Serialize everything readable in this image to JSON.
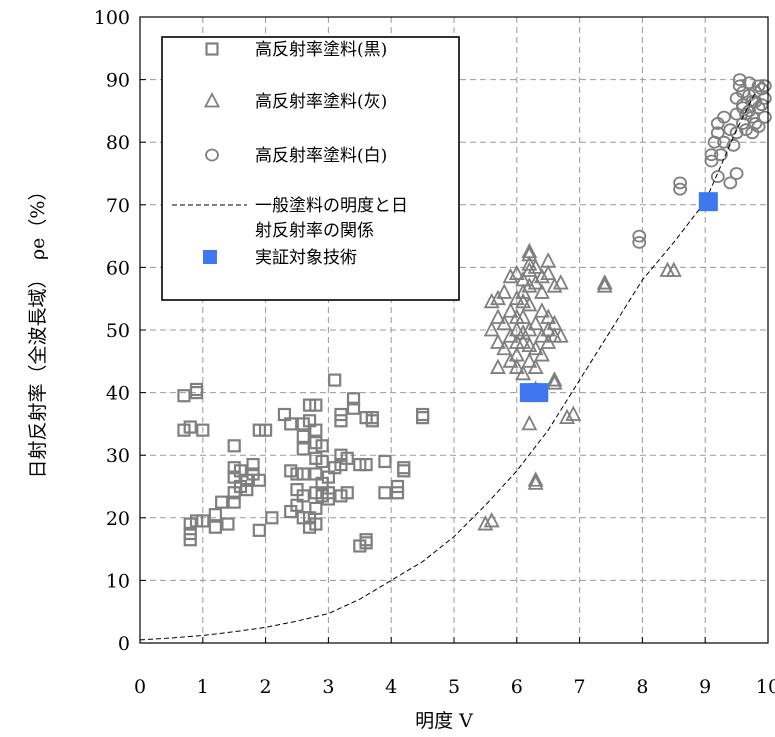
{
  "chart_data": {
    "type": "scatter",
    "xlabel": "明度 V",
    "ylabel": "日射反射率（全波長域）　ρe（%）",
    "xlim": [
      0,
      10
    ],
    "ylim": [
      0,
      100
    ],
    "x_ticks": [
      "0",
      "1",
      "2",
      "3",
      "4",
      "5",
      "6",
      "7",
      "8",
      "9",
      "10"
    ],
    "y_ticks": [
      "0",
      "10",
      "20",
      "30",
      "40",
      "50",
      "60",
      "70",
      "80",
      "90",
      "100"
    ],
    "grid": true,
    "legend_position": "top-left",
    "legend": [
      {
        "marker": "square",
        "label": "高反射率塗料(黒)"
      },
      {
        "marker": "triangle",
        "label": "高反射率塗料(灰)"
      },
      {
        "marker": "circle",
        "label": "高反射率塗料(白)"
      },
      {
        "marker": "dashed-line",
        "label": "一般塗料の明度と日\n射反射率の関係"
      },
      {
        "marker": "filled-square",
        "label": "実証対象技術"
      }
    ],
    "colors": {
      "markers": "#7f7f7f",
      "highlight": "#3f77f0",
      "line": "#000000"
    },
    "series": [
      {
        "name": "高反射率塗料(黒)",
        "marker": "square",
        "points": [
          [
            0.7,
            34
          ],
          [
            0.8,
            34.5
          ],
          [
            0.9,
            40
          ],
          [
            0.9,
            40.5
          ],
          [
            1.0,
            34
          ],
          [
            0.7,
            39.5
          ],
          [
            0.8,
            16.5
          ],
          [
            0.8,
            17.5
          ],
          [
            0.8,
            19
          ],
          [
            0.9,
            19.5
          ],
          [
            1.0,
            19.5
          ],
          [
            1.2,
            18.5
          ],
          [
            1.2,
            20.5
          ],
          [
            1.3,
            22.5
          ],
          [
            1.4,
            19
          ],
          [
            1.5,
            22.5
          ],
          [
            1.5,
            24
          ],
          [
            1.5,
            26.5
          ],
          [
            1.5,
            28
          ],
          [
            1.5,
            31.5
          ],
          [
            1.6,
            25
          ],
          [
            1.6,
            27.5
          ],
          [
            1.7,
            24.5
          ],
          [
            1.7,
            26
          ],
          [
            1.8,
            27
          ],
          [
            1.8,
            28.5
          ],
          [
            1.9,
            26
          ],
          [
            1.9,
            34
          ],
          [
            2.0,
            34
          ],
          [
            1.9,
            18
          ],
          [
            2.1,
            20
          ],
          [
            2.3,
            36.5
          ],
          [
            2.4,
            35
          ],
          [
            2.4,
            27.5
          ],
          [
            2.5,
            27
          ],
          [
            2.5,
            24.5
          ],
          [
            2.4,
            21
          ],
          [
            2.5,
            22
          ],
          [
            2.6,
            20
          ],
          [
            2.6,
            23.5
          ],
          [
            2.6,
            27
          ],
          [
            2.6,
            31
          ],
          [
            2.6,
            33
          ],
          [
            2.6,
            35
          ],
          [
            2.7,
            38
          ],
          [
            2.7,
            35.5
          ],
          [
            2.7,
            18.5
          ],
          [
            2.7,
            20
          ],
          [
            2.8,
            19
          ],
          [
            2.8,
            21.5
          ],
          [
            2.8,
            24
          ],
          [
            2.8,
            27
          ],
          [
            2.8,
            29.5
          ],
          [
            2.8,
            32
          ],
          [
            2.8,
            34
          ],
          [
            2.8,
            38
          ],
          [
            2.9,
            23.5
          ],
          [
            2.9,
            25.5
          ],
          [
            2.9,
            29
          ],
          [
            2.9,
            31.5
          ],
          [
            3.0,
            24
          ],
          [
            3.0,
            26.5
          ],
          [
            3.0,
            23
          ],
          [
            3.1,
            42
          ],
          [
            3.1,
            28
          ],
          [
            3.2,
            23.5
          ],
          [
            3.2,
            28.5
          ],
          [
            3.2,
            30
          ],
          [
            3.2,
            35.5
          ],
          [
            3.2,
            36.5
          ],
          [
            3.3,
            24
          ],
          [
            3.3,
            29.5
          ],
          [
            3.4,
            37.5
          ],
          [
            3.4,
            39
          ],
          [
            3.5,
            15.5
          ],
          [
            3.6,
            16
          ],
          [
            3.6,
            16.5
          ],
          [
            3.5,
            28.5
          ],
          [
            3.6,
            28.5
          ],
          [
            3.6,
            36
          ],
          [
            3.7,
            35.5
          ],
          [
            3.7,
            36
          ],
          [
            3.9,
            24
          ],
          [
            3.9,
            29
          ],
          [
            4.1,
            24
          ],
          [
            4.1,
            25
          ],
          [
            4.2,
            27.5
          ],
          [
            4.2,
            28
          ],
          [
            4.5,
            36
          ],
          [
            4.5,
            36.5
          ]
        ]
      },
      {
        "name": "高反射率塗料(灰)",
        "marker": "triangle",
        "points": [
          [
            5.5,
            19
          ],
          [
            5.6,
            19.5
          ],
          [
            6.2,
            35
          ],
          [
            6.3,
            25.5
          ],
          [
            6.3,
            26
          ],
          [
            6.8,
            36
          ],
          [
            6.9,
            36.5
          ],
          [
            7.4,
            57.5
          ],
          [
            7.4,
            57
          ],
          [
            8.4,
            59.5
          ],
          [
            8.5,
            59.5
          ],
          [
            6.0,
            44
          ],
          [
            6.0,
            46
          ],
          [
            6.1,
            43
          ],
          [
            6.1,
            48
          ],
          [
            6.1,
            52
          ],
          [
            6.2,
            45
          ],
          [
            6.2,
            50
          ],
          [
            6.2,
            54
          ],
          [
            6.3,
            44
          ],
          [
            6.3,
            47
          ],
          [
            6.3,
            51
          ],
          [
            6.4,
            46
          ],
          [
            6.4,
            49
          ],
          [
            6.4,
            53
          ],
          [
            6.4,
            56
          ],
          [
            6.5,
            50
          ],
          [
            6.5,
            52
          ],
          [
            6.5,
            48
          ],
          [
            6.6,
            49
          ],
          [
            6.6,
            41.5
          ],
          [
            6.6,
            42
          ],
          [
            6.3,
            40.5
          ],
          [
            5.6,
            50
          ],
          [
            5.7,
            48
          ],
          [
            5.7,
            52
          ],
          [
            5.7,
            55
          ],
          [
            5.8,
            47
          ],
          [
            5.8,
            51
          ],
          [
            5.8,
            56
          ],
          [
            5.9,
            49
          ],
          [
            5.9,
            53
          ],
          [
            5.9,
            58.5
          ],
          [
            5.9,
            45
          ],
          [
            6.0,
            50
          ],
          [
            6.0,
            52
          ],
          [
            6.0,
            55
          ],
          [
            6.0,
            59
          ],
          [
            6.1,
            56
          ],
          [
            6.1,
            58
          ],
          [
            6.1,
            54.5
          ],
          [
            6.2,
            57
          ],
          [
            6.2,
            59.5
          ],
          [
            6.2,
            60.5
          ],
          [
            6.2,
            62
          ],
          [
            6.2,
            62.5
          ],
          [
            6.3,
            60
          ],
          [
            6.3,
            57.5
          ],
          [
            6.4,
            58.5
          ],
          [
            6.5,
            61
          ],
          [
            6.5,
            59
          ],
          [
            6.6,
            57
          ],
          [
            6.7,
            57.5
          ],
          [
            6.7,
            49
          ],
          [
            6.6,
            51
          ],
          [
            5.6,
            54.5
          ],
          [
            5.7,
            44
          ],
          [
            6.2,
            47.5
          ],
          [
            6.1,
            49.5
          ],
          [
            6.0,
            48
          ]
        ]
      },
      {
        "name": "高反射率塗料(白)",
        "marker": "circle",
        "points": [
          [
            7.95,
            64
          ],
          [
            7.95,
            65
          ],
          [
            8.6,
            72.5
          ],
          [
            8.6,
            73.5
          ],
          [
            9.1,
            77
          ],
          [
            9.1,
            78
          ],
          [
            9.15,
            80
          ],
          [
            9.2,
            81.5
          ],
          [
            9.2,
            83
          ],
          [
            9.2,
            74.5
          ],
          [
            9.25,
            78
          ],
          [
            9.3,
            80
          ],
          [
            9.3,
            84
          ],
          [
            9.4,
            82
          ],
          [
            9.4,
            73.5
          ],
          [
            9.5,
            75
          ],
          [
            9.5,
            84.5
          ],
          [
            9.5,
            87
          ],
          [
            9.45,
            79.5
          ],
          [
            9.5,
            81.5
          ],
          [
            9.55,
            89
          ],
          [
            9.55,
            90
          ],
          [
            9.6,
            83
          ],
          [
            9.6,
            85.5
          ],
          [
            9.6,
            88
          ],
          [
            9.65,
            82
          ],
          [
            9.7,
            85
          ],
          [
            9.7,
            87.5
          ],
          [
            9.7,
            89.5
          ],
          [
            9.75,
            84
          ],
          [
            9.75,
            86.5
          ],
          [
            9.8,
            83
          ],
          [
            9.8,
            88
          ],
          [
            9.85,
            85.5
          ],
          [
            9.85,
            82.5
          ],
          [
            9.9,
            86
          ],
          [
            9.9,
            88.5
          ],
          [
            9.95,
            84
          ],
          [
            9.95,
            87
          ],
          [
            9.95,
            89
          ],
          [
            9.6,
            86
          ],
          [
            9.65,
            84.5
          ],
          [
            9.75,
            81.5
          ],
          [
            9.8,
            86.5
          ],
          [
            9.85,
            89
          ]
        ]
      },
      {
        "name": "一般塗料の明度と日射反射率の関係",
        "marker": "dashed-line",
        "points": [
          [
            0,
            0.5
          ],
          [
            0.5,
            0.8
          ],
          [
            1,
            1.2
          ],
          [
            1.5,
            1.8
          ],
          [
            2,
            2.5
          ],
          [
            2.5,
            3.5
          ],
          [
            3,
            4.7
          ],
          [
            3.5,
            7
          ],
          [
            4,
            10
          ],
          [
            4.5,
            13
          ],
          [
            5,
            17
          ],
          [
            5.5,
            22
          ],
          [
            6,
            27.5
          ],
          [
            6.5,
            34
          ],
          [
            7,
            42
          ],
          [
            7.5,
            50
          ],
          [
            8,
            58
          ],
          [
            8.5,
            64
          ],
          [
            9,
            70.5
          ],
          [
            9.5,
            82
          ],
          [
            9.8,
            88
          ]
        ]
      },
      {
        "name": "実証対象技術",
        "marker": "filled-square",
        "points": [
          [
            6.2,
            40
          ],
          [
            6.35,
            40
          ],
          [
            9.05,
            70.5
          ]
        ]
      }
    ]
  }
}
